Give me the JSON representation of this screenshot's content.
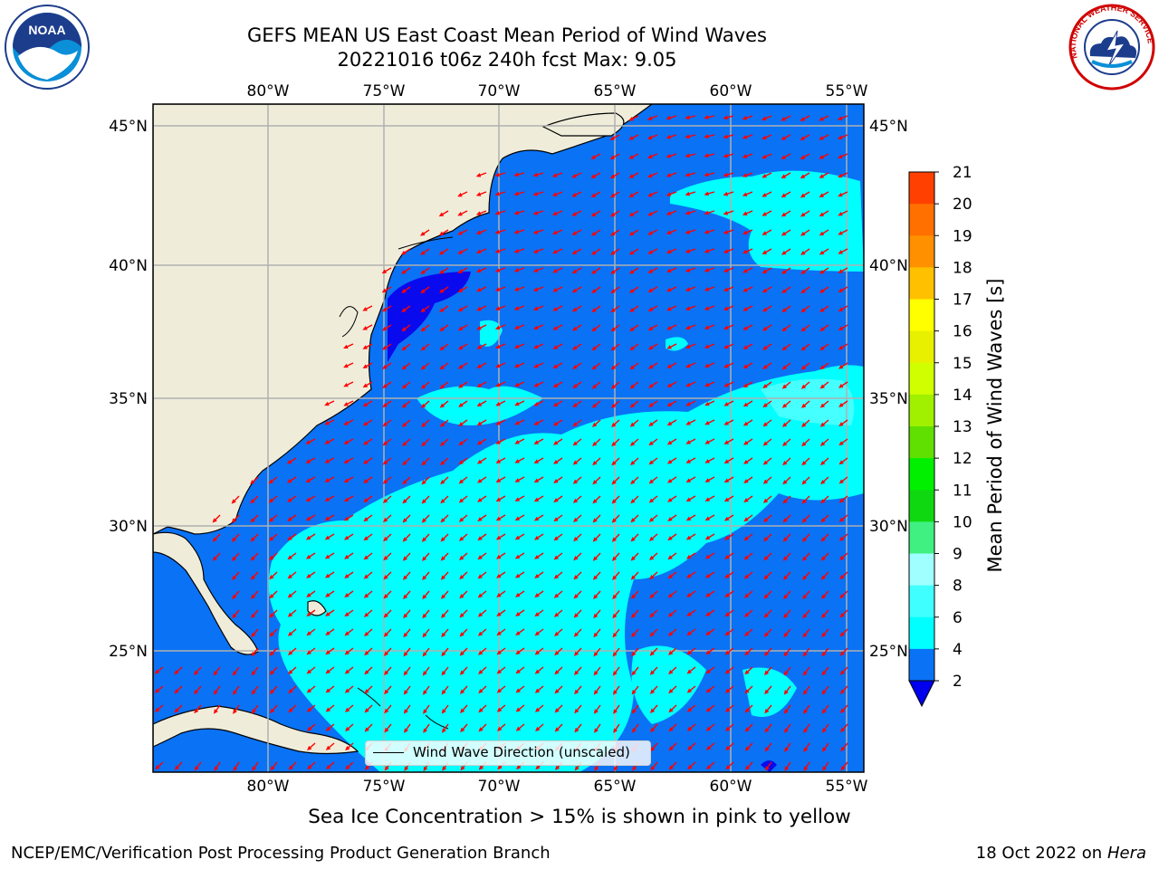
{
  "title": {
    "line1": "GEFS MEAN US East Coast Mean Period of Wind Waves",
    "line2": "20221016 t06z 240h fcst   Max: 9.05"
  },
  "logos": {
    "left": "noaa-logo",
    "left_text": "NOAA",
    "right": "national-weather-service-logo",
    "right_text": "NATIONAL WEATHER SERVICE"
  },
  "map": {
    "lon_labels": [
      "80°W",
      "75°W",
      "70°W",
      "65°W",
      "60°W",
      "55°W"
    ],
    "lon_values": [
      -80,
      -75,
      -70,
      -65,
      -60,
      -55
    ],
    "lat_labels": [
      "45°N",
      "40°N",
      "35°N",
      "30°N",
      "25°N"
    ],
    "lat_values": [
      45,
      40,
      35,
      30,
      25
    ],
    "extent": {
      "lon": [
        -85,
        -54.2
      ],
      "lat": [
        20.5,
        46
      ]
    },
    "colors": {
      "land": "#efedda",
      "ocean_low": "#0a72f5",
      "ocean_mid": "#00ffff",
      "ocean_very_low": "#0a0aee",
      "arrows": "#ff0000",
      "grid": "#b0b0b0"
    },
    "legend_label": "Wind Wave Direction (unscaled)",
    "arrow_direction_note": "arrows point toward southwest to west-southwest"
  },
  "colorbar": {
    "label": "Mean Period of Wind Waves [s]",
    "ticks": [
      "2",
      "4",
      "6",
      "8",
      "9",
      "10",
      "11",
      "12",
      "13",
      "14",
      "15",
      "16",
      "17",
      "18",
      "19",
      "20",
      "21"
    ],
    "colors": [
      "#0a72f5",
      "#00ffff",
      "#40ffff",
      "#a0ffff",
      "#40f080",
      "#10d810",
      "#00f000",
      "#60e000",
      "#a0f000",
      "#d0ff00",
      "#e8f000",
      "#ffff00",
      "#ffc000",
      "#ff9000",
      "#ff7000",
      "#ff4000",
      "#ff1000",
      "#ff0000"
    ],
    "under_color": "#0000ee"
  },
  "ice_note": "Sea Ice Concentration > 15% is shown in pink to yellow",
  "footer": {
    "left": "NCEP/EMC/Verification Post Processing Product Generation Branch",
    "right_prefix": "18 Oct 2022 on ",
    "right_italic": "Hera"
  }
}
